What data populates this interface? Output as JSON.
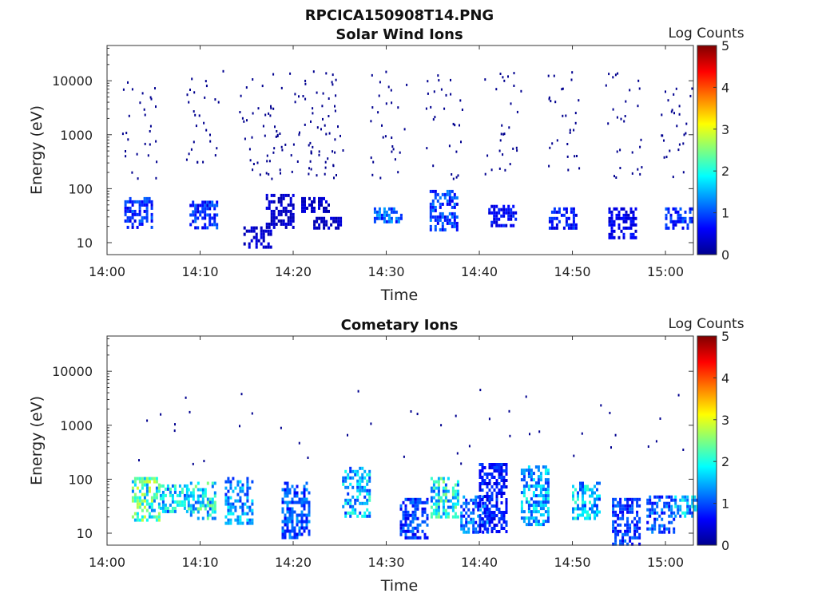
{
  "figure": {
    "title": "RPCICA150908T14.PNG"
  },
  "chart_data": [
    {
      "type": "heatmap",
      "title": "Solar Wind Ions",
      "xlabel": "Time",
      "ylabel": "Energy (eV)",
      "x_tick_labels": [
        "14:00",
        "14:10",
        "14:20",
        "14:30",
        "14:40",
        "14:50",
        "15:00"
      ],
      "y_tick_labels": [
        "10",
        "100",
        "1000",
        "10000"
      ],
      "y_scale": "log",
      "ylim": [
        6,
        45000
      ],
      "xlim_minutes": [
        0,
        63
      ],
      "colorbar": {
        "label": "Log Counts",
        "ticks": [
          "0",
          "1",
          "2",
          "3",
          "4",
          "5"
        ],
        "range": [
          0,
          5
        ],
        "colormap": "jet"
      },
      "bursts": [
        {
          "t": 3.4,
          "e": [
            18,
            70
          ],
          "level": 0.9
        },
        {
          "t": 10.4,
          "e": [
            20,
            60
          ],
          "level": 0.9
        },
        {
          "t": 16.2,
          "e": [
            8,
            20
          ],
          "level": 0.4
        },
        {
          "t": 18.6,
          "e": [
            20,
            80
          ],
          "level": 0.4
        },
        {
          "t": 22.4,
          "e": [
            40,
            70
          ],
          "level": 0.4
        },
        {
          "t": 23.7,
          "e": [
            18,
            30
          ],
          "level": 0.4
        },
        {
          "t": 30.2,
          "e": [
            25,
            45
          ],
          "level": 1.2
        },
        {
          "t": 36.2,
          "e": [
            18,
            95
          ],
          "level": 1.0
        },
        {
          "t": 42.5,
          "e": [
            20,
            50
          ],
          "level": 0.7
        },
        {
          "t": 49.0,
          "e": [
            18,
            45
          ],
          "level": 0.8
        },
        {
          "t": 55.4,
          "e": [
            12,
            45
          ],
          "level": 0.6
        },
        {
          "t": 61.5,
          "e": [
            18,
            45
          ],
          "level": 0.9
        }
      ]
    },
    {
      "type": "heatmap",
      "title": "Cometary Ions",
      "xlabel": "Time",
      "ylabel": "Energy (eV)",
      "x_tick_labels": [
        "14:00",
        "14:10",
        "14:20",
        "14:30",
        "14:40",
        "14:50",
        "15:00"
      ],
      "y_tick_labels": [
        "10",
        "100",
        "1000",
        "10000"
      ],
      "y_scale": "log",
      "ylim": [
        6,
        45000
      ],
      "xlim_minutes": [
        0,
        63
      ],
      "colorbar": {
        "label": "Log Counts",
        "ticks": [
          "0",
          "1",
          "2",
          "3",
          "4",
          "5"
        ],
        "range": [
          0,
          5
        ],
        "colormap": "jet"
      },
      "bursts": [
        {
          "t": 4.2,
          "e": [
            18,
            110
          ],
          "level": 2.3
        },
        {
          "t": 7.2,
          "e": [
            25,
            80
          ],
          "level": 1.8
        },
        {
          "t": 10.2,
          "e": [
            20,
            90
          ],
          "level": 2.0
        },
        {
          "t": 14.2,
          "e": [
            15,
            110
          ],
          "level": 1.5
        },
        {
          "t": 20.3,
          "e": [
            8,
            90
          ],
          "level": 1.1
        },
        {
          "t": 26.8,
          "e": [
            22,
            170
          ],
          "level": 1.7
        },
        {
          "t": 33.0,
          "e": [
            8,
            45
          ],
          "level": 1.0
        },
        {
          "t": 36.3,
          "e": [
            20,
            110
          ],
          "level": 2.0
        },
        {
          "t": 39.5,
          "e": [
            10,
            50
          ],
          "level": 1.2
        },
        {
          "t": 41.5,
          "e": [
            10,
            200
          ],
          "level": 0.8
        },
        {
          "t": 46.0,
          "e": [
            15,
            180
          ],
          "level": 1.6
        },
        {
          "t": 51.5,
          "e": [
            20,
            90
          ],
          "level": 1.7
        },
        {
          "t": 55.8,
          "e": [
            6,
            45
          ],
          "level": 1.0
        },
        {
          "t": 59.5,
          "e": [
            10,
            50
          ],
          "level": 1.1
        },
        {
          "t": 62.5,
          "e": [
            20,
            50
          ],
          "level": 1.6
        }
      ]
    }
  ]
}
